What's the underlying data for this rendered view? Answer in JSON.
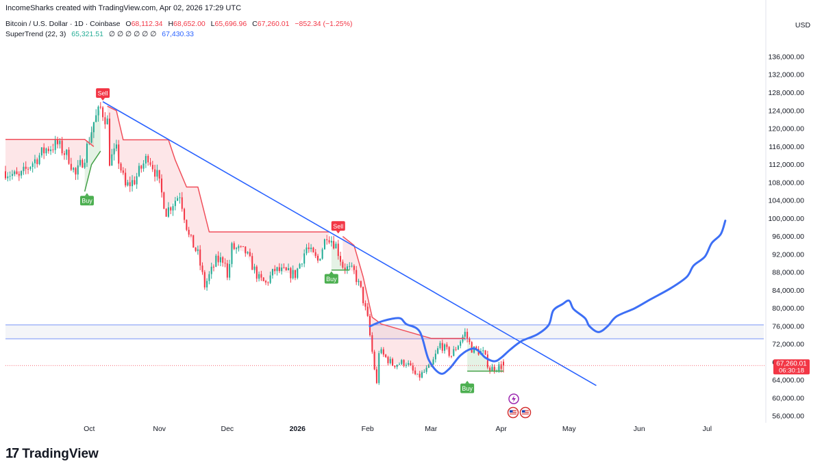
{
  "header": {
    "creator_text": "IncomeSharks created with TradingView.com, Apr 02, 2026 17:29 UTC"
  },
  "legend": {
    "symbol_title": "Bitcoin / U.S. Dollar · 1D · Coinbase",
    "ohlc": [
      {
        "label": "O",
        "value": "68,112.34"
      },
      {
        "label": "H",
        "value": "68,652.00"
      },
      {
        "label": "L",
        "value": "65,696.96"
      },
      {
        "label": "C",
        "value": "67,260.01"
      }
    ],
    "change": "−852.34 (−1.25%)",
    "indicator_name": "SuperTrend (22, 3)",
    "indicator_up": "65,321.51",
    "indicator_placeholders": "∅ ∅ ∅ ∅ ∅ ∅",
    "indicator_down": "67,430.33"
  },
  "price_axis": {
    "currency": "USD",
    "last_price": "67,260.01",
    "countdown": "06:30:18"
  },
  "brand": {
    "logo_glyph": "17",
    "name": "TradingView"
  },
  "colors": {
    "bull": "#22ab94",
    "bear": "#f23645",
    "trendline": "#2962ff",
    "drawing": "#3d6ff5",
    "zone_line": "#90a8f7",
    "supertrend_down": "#f04e5a",
    "supertrend_up": "#43a047"
  },
  "chart_data": {
    "type": "candlestick",
    "y_scale": "linear",
    "ylim": [
      54500,
      139500
    ],
    "y_ticks": [
      {
        "value": 56000,
        "label": "56,000.00"
      },
      {
        "value": 60000,
        "label": "60,000.00"
      },
      {
        "value": 64000,
        "label": "64,000.00"
      },
      {
        "value": 68000,
        "label": "68,000.00"
      },
      {
        "value": 72000,
        "label": "72,000.00"
      },
      {
        "value": 76000,
        "label": "76,000.00"
      },
      {
        "value": 80000,
        "label": "80,000.00"
      },
      {
        "value": 84000,
        "label": "84,000.00"
      },
      {
        "value": 88000,
        "label": "88,000.00"
      },
      {
        "value": 92000,
        "label": "92,000.00"
      },
      {
        "value": 96000,
        "label": "96,000.00"
      },
      {
        "value": 100000,
        "label": "100,000.00"
      },
      {
        "value": 104000,
        "label": "104,000.00"
      },
      {
        "value": 108000,
        "label": "108,000.00"
      },
      {
        "value": 112000,
        "label": "112,000.00"
      },
      {
        "value": 116000,
        "label": "116,000.00"
      },
      {
        "value": 120000,
        "label": "120,000.00"
      },
      {
        "value": 124000,
        "label": "124,000.00"
      },
      {
        "value": 128000,
        "label": "128,000.00"
      },
      {
        "value": 132000,
        "label": "132,000.00"
      },
      {
        "value": 136000,
        "label": "136,000.00"
      }
    ],
    "x_domain": [
      "2025-08-25",
      "2026-07-26"
    ],
    "x_ticks": [
      {
        "date": "2025-10-01",
        "label": "Oct",
        "bold": false
      },
      {
        "date": "2025-11-01",
        "label": "Nov",
        "bold": false
      },
      {
        "date": "2025-12-01",
        "label": "Dec",
        "bold": false
      },
      {
        "date": "2026-01-01",
        "label": "2026",
        "bold": true
      },
      {
        "date": "2026-02-01",
        "label": "Feb",
        "bold": false
      },
      {
        "date": "2026-03-01",
        "label": "Mar",
        "bold": false
      },
      {
        "date": "2026-04-01",
        "label": "Apr",
        "bold": false
      },
      {
        "date": "2026-05-01",
        "label": "May",
        "bold": false
      },
      {
        "date": "2026-06-01",
        "label": "Jun",
        "bold": false
      },
      {
        "date": "2026-07-01",
        "label": "Jul",
        "bold": false
      }
    ],
    "price_path": [
      {
        "date": "2025-08-25",
        "close": 110500
      },
      {
        "date": "2025-08-31",
        "close": 109000
      },
      {
        "date": "2025-09-05",
        "close": 112000
      },
      {
        "date": "2025-09-12",
        "close": 115500
      },
      {
        "date": "2025-09-17",
        "close": 116500
      },
      {
        "date": "2025-09-22",
        "close": 113500
      },
      {
        "date": "2025-09-25",
        "close": 109500
      },
      {
        "date": "2025-09-29",
        "close": 114000
      },
      {
        "date": "2025-10-03",
        "close": 121500
      },
      {
        "date": "2025-10-06",
        "close": 124500
      },
      {
        "date": "2025-10-09",
        "close": 121500
      },
      {
        "date": "2025-10-10",
        "close": 113000
      },
      {
        "date": "2025-10-13",
        "close": 115000
      },
      {
        "date": "2025-10-17",
        "close": 107000
      },
      {
        "date": "2025-10-21",
        "close": 108500
      },
      {
        "date": "2025-10-27",
        "close": 114000
      },
      {
        "date": "2025-10-31",
        "close": 109500
      },
      {
        "date": "2025-11-04",
        "close": 101500
      },
      {
        "date": "2025-11-10",
        "close": 105500
      },
      {
        "date": "2025-11-14",
        "close": 96000
      },
      {
        "date": "2025-11-18",
        "close": 92000
      },
      {
        "date": "2025-11-21",
        "close": 85000
      },
      {
        "date": "2025-11-26",
        "close": 90500
      },
      {
        "date": "2025-11-30",
        "close": 91000
      },
      {
        "date": "2025-12-01",
        "close": 86500
      },
      {
        "date": "2025-12-03",
        "close": 93500
      },
      {
        "date": "2025-12-09",
        "close": 92500
      },
      {
        "date": "2025-12-15",
        "close": 86500
      },
      {
        "date": "2025-12-18",
        "close": 85500
      },
      {
        "date": "2025-12-22",
        "close": 88500
      },
      {
        "date": "2025-12-31",
        "close": 87500
      },
      {
        "date": "2026-01-05",
        "close": 93500
      },
      {
        "date": "2026-01-10",
        "close": 90500
      },
      {
        "date": "2026-01-14",
        "close": 96500
      },
      {
        "date": "2026-01-18",
        "close": 94000
      },
      {
        "date": "2026-01-21",
        "close": 89500
      },
      {
        "date": "2026-01-26",
        "close": 88000
      },
      {
        "date": "2026-01-29",
        "close": 84000
      },
      {
        "date": "2026-02-01",
        "close": 77500
      },
      {
        "date": "2026-02-05",
        "close": 63000
      },
      {
        "date": "2026-02-06",
        "close": 70500
      },
      {
        "date": "2026-02-12",
        "close": 67500
      },
      {
        "date": "2026-02-18",
        "close": 68000
      },
      {
        "date": "2026-02-23",
        "close": 64500
      },
      {
        "date": "2026-03-01",
        "close": 67000
      },
      {
        "date": "2026-03-05",
        "close": 72000
      },
      {
        "date": "2026-03-10",
        "close": 69500
      },
      {
        "date": "2026-03-16",
        "close": 74500
      },
      {
        "date": "2026-03-19",
        "close": 71000
      },
      {
        "date": "2026-03-24",
        "close": 70000
      },
      {
        "date": "2026-03-27",
        "close": 66500
      },
      {
        "date": "2026-04-02",
        "close": 67260
      }
    ],
    "supertrend_down": [
      {
        "date": "2025-08-25",
        "value": 117600
      },
      {
        "date": "2025-09-29",
        "value": 117600
      },
      {
        "date": "2025-10-03",
        "value": 116000
      }
    ],
    "supertrend_down_2": [
      {
        "date": "2025-10-09",
        "value": 125000
      },
      {
        "date": "2025-10-13",
        "value": 124000
      },
      {
        "date": "2025-10-16",
        "value": 117500
      },
      {
        "date": "2025-11-05",
        "value": 117500
      },
      {
        "date": "2025-11-08",
        "value": 113000
      },
      {
        "date": "2025-11-13",
        "value": 107000
      },
      {
        "date": "2025-11-18",
        "value": 107000
      },
      {
        "date": "2025-11-20",
        "value": 103000
      },
      {
        "date": "2025-11-23",
        "value": 97000
      },
      {
        "date": "2026-01-15",
        "value": 97000
      }
    ],
    "supertrend_down_3": [
      {
        "date": "2026-01-21",
        "value": 96000
      },
      {
        "date": "2026-01-26",
        "value": 94000
      },
      {
        "date": "2026-01-30",
        "value": 87000
      },
      {
        "date": "2026-02-03",
        "value": 78000
      },
      {
        "date": "2026-02-07",
        "value": 76500
      },
      {
        "date": "2026-03-01",
        "value": 73300
      },
      {
        "date": "2026-03-16",
        "value": 73300
      }
    ],
    "supertrend_up": [
      {
        "date": "2025-09-29",
        "value": 106000
      },
      {
        "date": "2025-10-02",
        "value": 112000
      },
      {
        "date": "2025-10-06",
        "value": 115000
      }
    ],
    "supertrend_up_2": [
      {
        "date": "2026-01-16",
        "value": 88500
      },
      {
        "date": "2026-01-24",
        "value": 88500
      }
    ],
    "supertrend_up_3": [
      {
        "date": "2026-03-17",
        "value": 66000
      },
      {
        "date": "2026-04-02",
        "value": 66000
      }
    ],
    "signals": [
      {
        "type": "sell",
        "label": "Sell",
        "date": "2025-10-07",
        "value": 126100
      },
      {
        "type": "buy",
        "label": "Buy",
        "date": "2025-09-30",
        "value": 105800
      },
      {
        "type": "sell",
        "label": "Sell",
        "date": "2026-01-19",
        "value": 96500
      },
      {
        "type": "buy",
        "label": "Buy",
        "date": "2026-01-16",
        "value": 88400
      },
      {
        "type": "buy",
        "label": "Buy",
        "date": "2026-03-17",
        "value": 64000
      }
    ],
    "trendline": [
      {
        "date": "2025-10-07",
        "value": 126000
      },
      {
        "date": "2026-05-13",
        "value": 62800
      }
    ],
    "resistance_zone": {
      "upper": 76300,
      "lower": 73200,
      "from": "2025-08-25",
      "to": "2026-07-26"
    },
    "last_price_value": 67260.01,
    "projection_path": [
      {
        "date": "2026-02-02",
        "value": 76000
      },
      {
        "date": "2026-02-08",
        "value": 77200
      },
      {
        "date": "2026-02-15",
        "value": 77800
      },
      {
        "date": "2026-02-18",
        "value": 76500
      },
      {
        "date": "2026-02-24",
        "value": 74800
      },
      {
        "date": "2026-02-28",
        "value": 68500
      },
      {
        "date": "2026-03-05",
        "value": 65500
      },
      {
        "date": "2026-03-09",
        "value": 66500
      },
      {
        "date": "2026-03-14",
        "value": 69500
      },
      {
        "date": "2026-03-19",
        "value": 71000
      },
      {
        "date": "2026-03-22",
        "value": 70500
      },
      {
        "date": "2026-03-25",
        "value": 69000
      },
      {
        "date": "2026-03-29",
        "value": 68200
      },
      {
        "date": "2026-04-01",
        "value": 69000
      },
      {
        "date": "2026-04-05",
        "value": 70800
      },
      {
        "date": "2026-04-10",
        "value": 72700
      },
      {
        "date": "2026-04-17",
        "value": 74200
      },
      {
        "date": "2026-04-22",
        "value": 76300
      },
      {
        "date": "2026-04-24",
        "value": 79500
      },
      {
        "date": "2026-04-28",
        "value": 80900
      },
      {
        "date": "2026-05-01",
        "value": 81700
      },
      {
        "date": "2026-05-03",
        "value": 79800
      },
      {
        "date": "2026-05-08",
        "value": 77800
      },
      {
        "date": "2026-05-10",
        "value": 76000
      },
      {
        "date": "2026-05-14",
        "value": 74700
      },
      {
        "date": "2026-05-18",
        "value": 76000
      },
      {
        "date": "2026-05-22",
        "value": 78200
      },
      {
        "date": "2026-05-30",
        "value": 80000
      },
      {
        "date": "2026-06-06",
        "value": 82000
      },
      {
        "date": "2026-06-15",
        "value": 84500
      },
      {
        "date": "2026-06-22",
        "value": 87000
      },
      {
        "date": "2026-06-25",
        "value": 89500
      },
      {
        "date": "2026-06-30",
        "value": 91500
      },
      {
        "date": "2026-07-03",
        "value": 94500
      },
      {
        "date": "2026-07-07",
        "value": 96500
      },
      {
        "date": "2026-07-09",
        "value": 99500
      }
    ]
  }
}
